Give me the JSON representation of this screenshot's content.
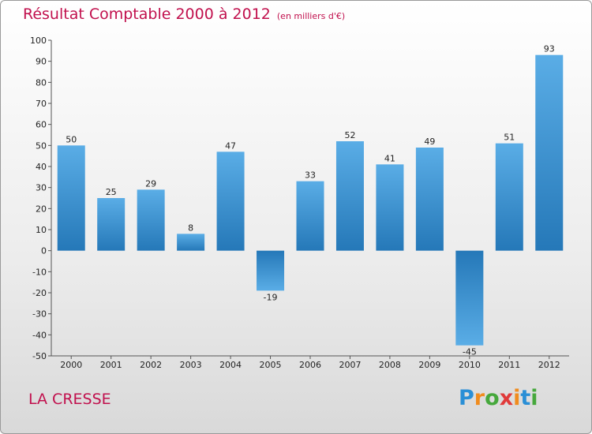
{
  "chart_data": {
    "type": "bar",
    "title": "Résultat Comptable 2000 à 2012",
    "subtitle": "(en milliers d'€)",
    "categories": [
      "2000",
      "2001",
      "2002",
      "2003",
      "2004",
      "2005",
      "2006",
      "2007",
      "2008",
      "2009",
      "2010",
      "2011",
      "2012"
    ],
    "values": [
      50,
      25,
      29,
      8,
      47,
      -19,
      33,
      52,
      41,
      49,
      -45,
      51,
      93
    ],
    "data_labels": [
      "50",
      "25",
      "29",
      "8",
      "47",
      "-19",
      "33",
      "52",
      "41",
      "49",
      "-45",
      "51",
      "93"
    ],
    "ylim": [
      -50,
      100
    ],
    "yticks": [
      -50,
      -40,
      -30,
      -20,
      -10,
      0,
      10,
      20,
      30,
      40,
      50,
      60,
      70,
      80,
      90,
      100
    ],
    "xlabel": "",
    "ylabel": "",
    "grid": false,
    "bar_color_light": "#5aade6",
    "bar_color_dark": "#2578b8"
  },
  "commune": "LA CRESSE",
  "logo": {
    "letters": [
      "P",
      "r",
      "o",
      "x",
      "i",
      "t",
      "i"
    ],
    "colors": [
      "#2a8fd6",
      "#f08c1e",
      "#46a83c",
      "#e03a3a",
      "#f08c1e",
      "#2a8fd6",
      "#46a83c"
    ]
  }
}
